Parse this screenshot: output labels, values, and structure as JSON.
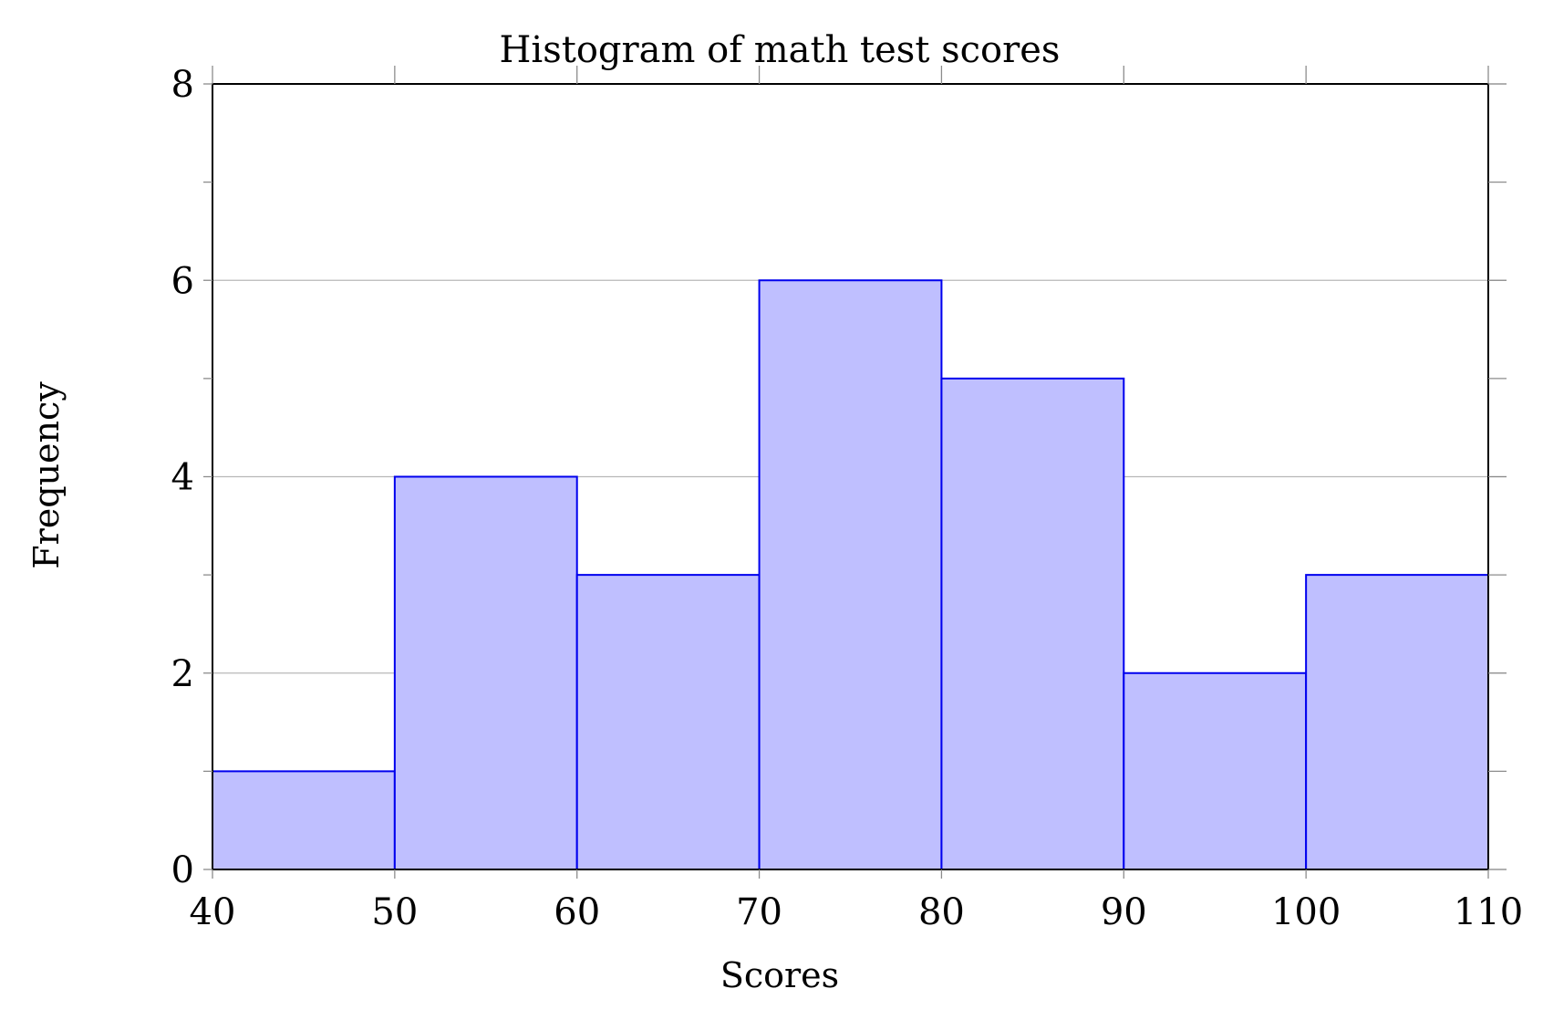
{
  "chart_data": {
    "type": "bar",
    "title": "Histogram of math test scores",
    "xlabel": "Scores",
    "ylabel": "Frequency",
    "bins": [
      [
        40,
        50
      ],
      [
        50,
        60
      ],
      [
        60,
        70
      ],
      [
        70,
        80
      ],
      [
        80,
        90
      ],
      [
        90,
        100
      ],
      [
        100,
        110
      ]
    ],
    "values": [
      1,
      4,
      3,
      6,
      5,
      2,
      3
    ],
    "xlim": [
      40,
      110
    ],
    "ylim": [
      0,
      8
    ],
    "x_ticks": [
      "40",
      "50",
      "60",
      "70",
      "80",
      "90",
      "100",
      "110"
    ],
    "y_ticks": [
      "0",
      "2",
      "4",
      "6",
      "8"
    ],
    "grid": "horizontal major",
    "colors": {
      "bar_fill": "#bfbfff",
      "bar_stroke": "#0000ee"
    }
  }
}
